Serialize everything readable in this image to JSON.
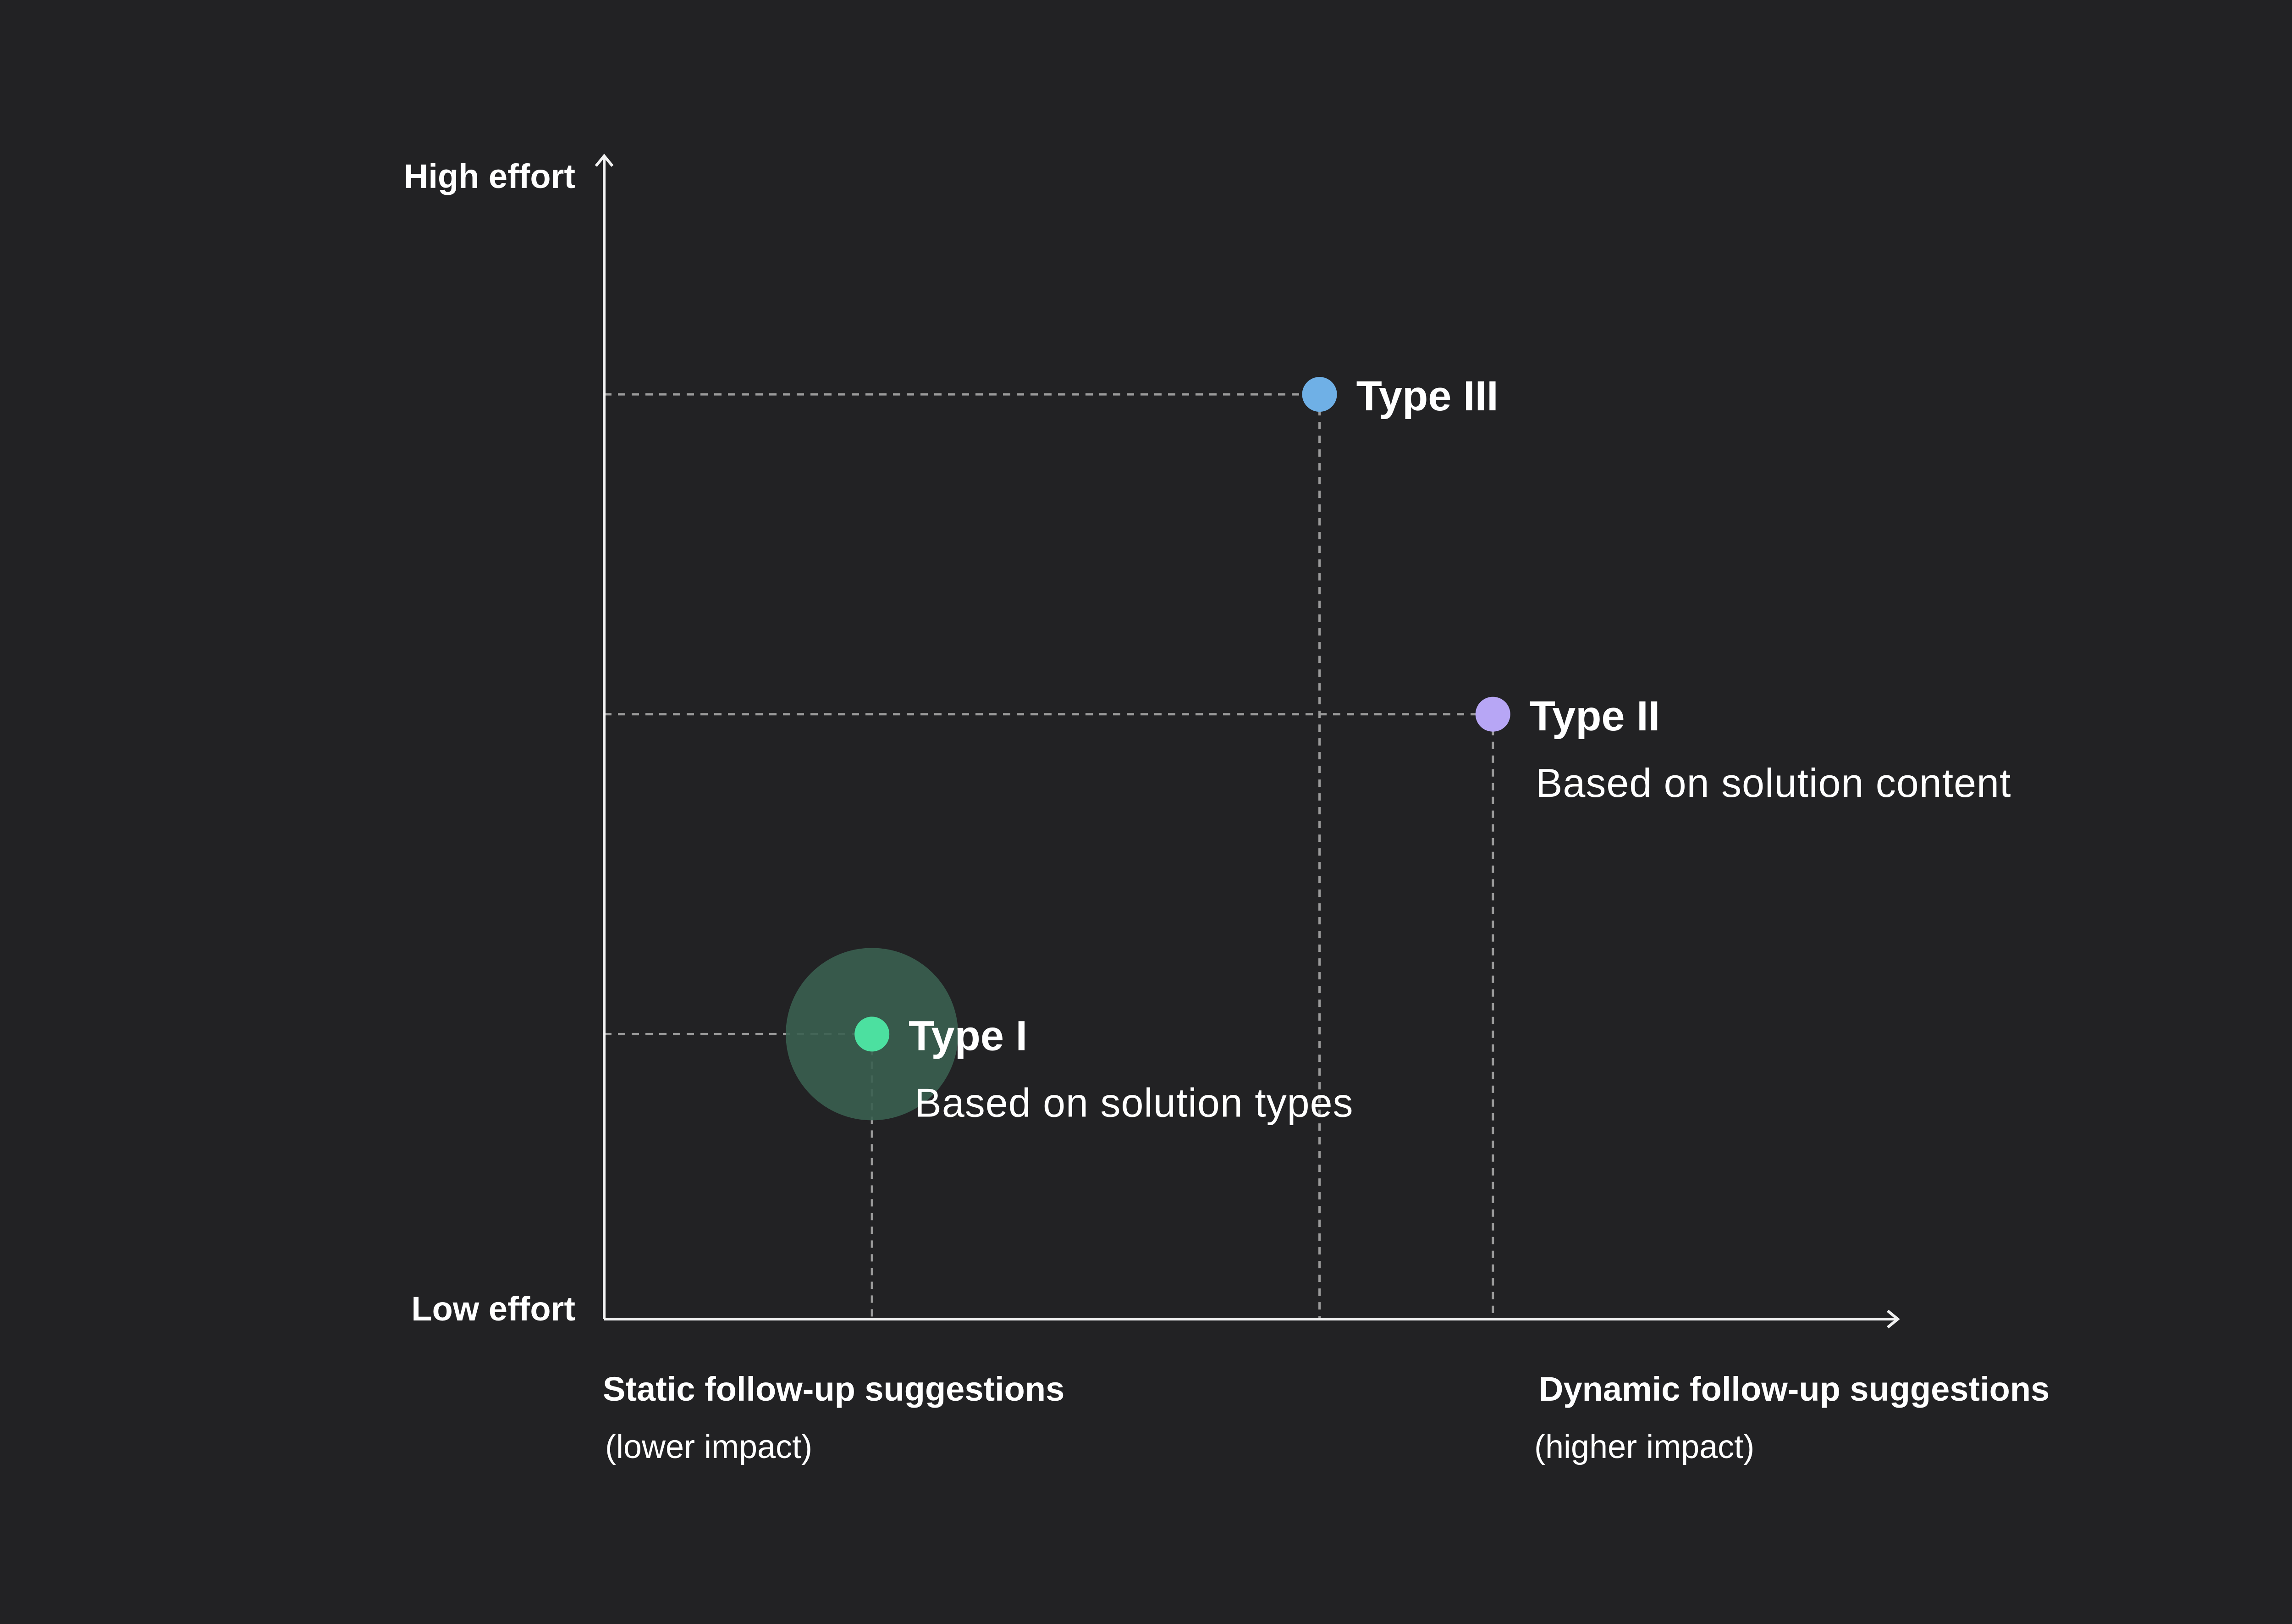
{
  "chart_data": {
    "type": "scatter",
    "title": "",
    "y_axis": {
      "low_label": "Low effort",
      "high_label": "High effort",
      "ylim": [
        0,
        1
      ]
    },
    "x_axis": {
      "left_label": "Static follow-up suggestions",
      "left_sublabel": "(lower impact)",
      "right_label": "Dynamic follow-up suggestions",
      "right_sublabel": "(higher impact)",
      "xlim": [
        0,
        1
      ]
    },
    "grid": false,
    "points": [
      {
        "name": "Type I",
        "description": "Based on solution types",
        "x": 0.207,
        "y": 0.245,
        "color": "#4ce0a0",
        "highlight": true,
        "highlight_color": "#3a5f50"
      },
      {
        "name": "Type II",
        "description": "Based on solution content",
        "x": 0.687,
        "y": 0.52,
        "color": "#b7a6f5",
        "highlight": false
      },
      {
        "name": "Type III",
        "description": "",
        "x": 0.553,
        "y": 0.795,
        "color": "#6fb0e6",
        "highlight": false
      }
    ]
  }
}
